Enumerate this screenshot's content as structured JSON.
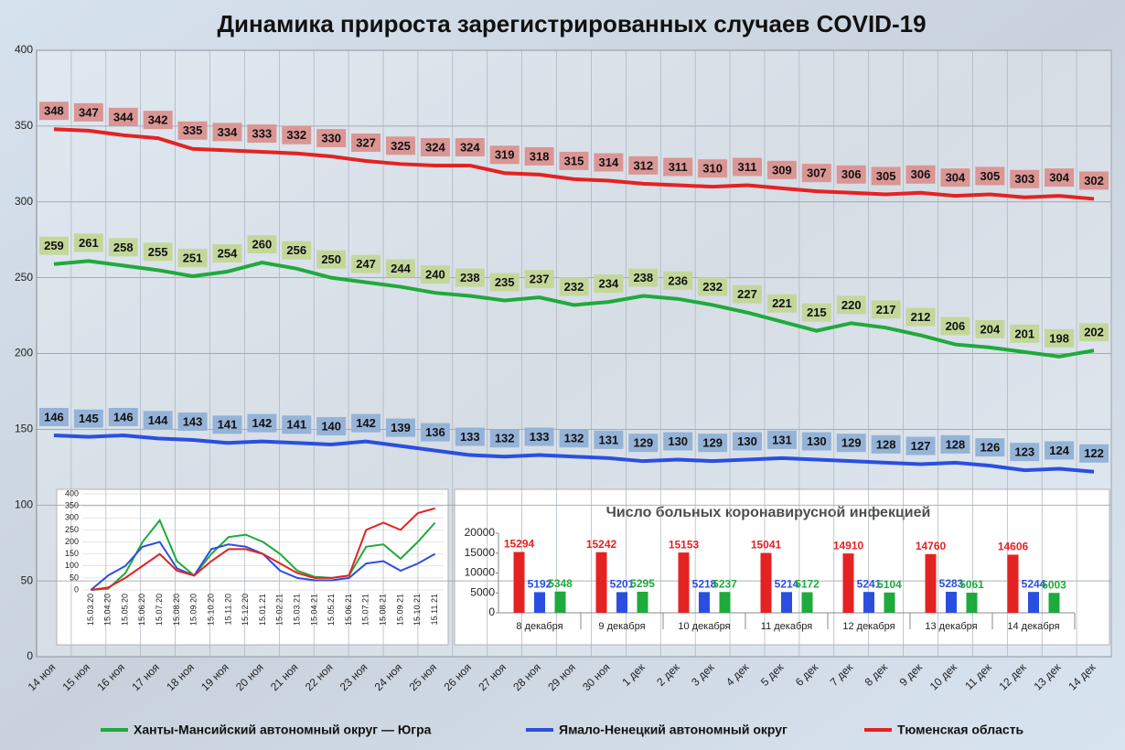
{
  "chart_data": [
    {
      "type": "line",
      "title": "Динамика прироста зарегистрированных случаев COVID-19",
      "categories": [
        "14 ноя",
        "15 ноя",
        "16 ноя",
        "17 ноя",
        "18 ноя",
        "19 ноя",
        "20 ноя",
        "21 ноя",
        "22 ноя",
        "23 ноя",
        "24 ноя",
        "25 ноя",
        "26 ноя",
        "27 ноя",
        "28 ноя",
        "29 ноя",
        "30 ноя",
        "1 дек",
        "2 дек",
        "3 дек",
        "4 дек",
        "5 дек",
        "6 дек",
        "7 дек",
        "8 дек",
        "9 дек",
        "10 дек",
        "11 дек",
        "12 дек",
        "13 дек",
        "14 дек"
      ],
      "series": [
        {
          "name": "Ханты-Мансийский автономный округ — Югра",
          "color": "#1faa3c",
          "label_fill": "#c4d79b",
          "values": [
            259,
            261,
            258,
            255,
            251,
            254,
            260,
            256,
            250,
            247,
            244,
            240,
            238,
            235,
            237,
            232,
            234,
            238,
            236,
            232,
            227,
            221,
            215,
            220,
            217,
            212,
            206,
            204,
            201,
            198,
            202
          ]
        },
        {
          "name": "Ямало-Ненецкий автономный округ",
          "color": "#2a4fe0",
          "label_fill": "#95b3d7",
          "values": [
            146,
            145,
            146,
            144,
            143,
            141,
            142,
            141,
            140,
            142,
            139,
            136,
            133,
            132,
            133,
            132,
            131,
            129,
            130,
            129,
            130,
            131,
            130,
            129,
            128,
            127,
            128,
            126,
            123,
            124,
            122
          ]
        },
        {
          "name": "Тюменская область",
          "color": "#e52222",
          "label_fill": "#da9694",
          "values": [
            348,
            347,
            344,
            342,
            335,
            334,
            333,
            332,
            330,
            327,
            325,
            324,
            324,
            319,
            318,
            315,
            314,
            312,
            311,
            310,
            311,
            309,
            307,
            306,
            305,
            306,
            304,
            305,
            303,
            304,
            302
          ]
        }
      ],
      "ylim": [
        0,
        400
      ],
      "yticks": [
        0,
        50,
        100,
        150,
        200,
        250,
        300,
        350,
        400
      ],
      "grid": true,
      "legend": "bottom"
    },
    {
      "type": "line",
      "categories": [
        "15.03.20",
        "15.04.20",
        "15.05.20",
        "15.06.20",
        "15.07.20",
        "15.08.20",
        "15.09.20",
        "15.10.20",
        "15.11.20",
        "15.12.20",
        "15.01.21",
        "15.02.21",
        "15.03.21",
        "15.04.21",
        "15.05.21",
        "15.06.21",
        "15.07.21",
        "15.08.21",
        "15.09.21",
        "15.10.21",
        "15.11.21"
      ],
      "series": [
        {
          "color": "#1faa3c",
          "values": [
            0,
            5,
            70,
            200,
            290,
            120,
            60,
            150,
            220,
            230,
            200,
            150,
            80,
            55,
            50,
            60,
            180,
            190,
            130,
            200,
            280
          ]
        },
        {
          "color": "#2a4fe0",
          "values": [
            0,
            60,
            100,
            180,
            200,
            90,
            60,
            170,
            190,
            180,
            150,
            80,
            50,
            40,
            40,
            50,
            110,
            120,
            80,
            110,
            150
          ]
        },
        {
          "color": "#e52222",
          "values": [
            0,
            10,
            50,
            100,
            150,
            80,
            60,
            120,
            170,
            170,
            150,
            110,
            70,
            50,
            50,
            60,
            250,
            280,
            250,
            320,
            340
          ]
        }
      ],
      "ylim": [
        0,
        400
      ],
      "yticks": [
        0,
        50,
        100,
        150,
        200,
        250,
        300,
        350,
        400
      ],
      "grid": true
    },
    {
      "type": "bar",
      "title": "Число больных коронавирусной инфекцией",
      "categories": [
        "8 декабря",
        "9 декабря",
        "10 декабря",
        "11 декабря",
        "12 декабря",
        "13 декабря",
        "14 декабря"
      ],
      "series": [
        {
          "color": "#e52222",
          "values": [
            15294,
            15242,
            15153,
            15041,
            14910,
            14760,
            14606
          ]
        },
        {
          "color": "#2a4fe0",
          "values": [
            5192,
            5201,
            5218,
            5214,
            5241,
            5283,
            5244
          ]
        },
        {
          "color": "#1faa3c",
          "values": [
            5348,
            5295,
            5237,
            5172,
            5104,
            5061,
            5003
          ]
        }
      ],
      "ylim": [
        0,
        20000
      ],
      "yticks": [
        0,
        5000,
        10000,
        15000,
        20000
      ],
      "grid": false
    }
  ]
}
